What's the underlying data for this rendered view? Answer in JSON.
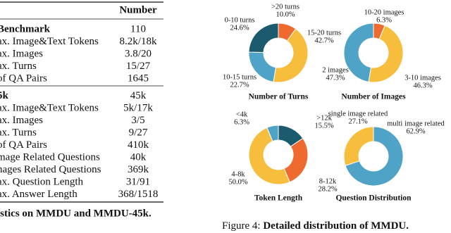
{
  "table": {
    "header": "Number",
    "sections": [
      {
        "title": "Benchmark",
        "value": "110",
        "rows": [
          [
            "ax. Image&Text Tokens",
            "8.2k/18k"
          ],
          [
            "ax. Images",
            "3.8/20"
          ],
          [
            "ax. Turns",
            "15/27"
          ],
          [
            "of QA Pairs",
            "1645"
          ]
        ]
      },
      {
        "title": "5k",
        "value": "45k",
        "rows": [
          [
            "ax. Image&Text Tokens",
            "5k/17k"
          ],
          [
            "ax. Images",
            "3/5"
          ],
          [
            "ax. Turns",
            "9/27"
          ],
          [
            "of QA Pairs",
            "410k"
          ],
          [
            "mage Related Questions",
            "40k"
          ],
          [
            "nages Related Questions",
            "369k"
          ],
          [
            "ax. Question Length",
            "31/91"
          ],
          [
            "ax. Answer Length",
            "368/1518"
          ]
        ]
      }
    ],
    "caption": "istics on MMDU and MMDU-45k."
  },
  "chart_data": [
    {
      "type": "pie",
      "title": "Number of Turns",
      "categories": [
        ">20 turns",
        "15-20 turns",
        "10-15 turns",
        "0-10 turns"
      ],
      "values": [
        10.0,
        42.7,
        22.7,
        24.6
      ],
      "value_labels": [
        "10.0%",
        "42.7%",
        "22.7%",
        "24.6%"
      ],
      "colors": [
        "#ef6a2f",
        "#f7bd3c",
        "#4ea3c6",
        "#1c5a6e"
      ]
    },
    {
      "type": "pie",
      "title": "Number of Images",
      "categories": [
        "10-20 images",
        "3-10 images",
        "2 images"
      ],
      "values": [
        6.3,
        46.3,
        47.3
      ],
      "value_labels": [
        "6.3%",
        "46.3%",
        "47.3%"
      ],
      "colors": [
        "#ef6a2f",
        "#f7bd3c",
        "#4ea3c6"
      ]
    },
    {
      "type": "pie",
      "title": "Token Length",
      "categories": [
        ">12k",
        "8-12k",
        "4-8k",
        "<4k"
      ],
      "values": [
        15.5,
        28.2,
        50.0,
        6.3
      ],
      "value_labels": [
        "15.5%",
        "28.2%",
        "50.0%",
        "6.3%"
      ],
      "colors": [
        "#1c5a6e",
        "#ef6a2f",
        "#f7bd3c",
        "#4ea3c6"
      ]
    },
    {
      "type": "pie",
      "title": "Question Distribution",
      "categories": [
        "multi image related",
        "single image related"
      ],
      "values": [
        62.9,
        27.1
      ],
      "value_labels": [
        "62.9%",
        "27.1%"
      ],
      "colors": [
        "#4ea3c6",
        "#f7bd3c"
      ]
    }
  ],
  "figure_caption": {
    "label": "Figure 4:",
    "text": "Detailed distribution of MMDU."
  }
}
